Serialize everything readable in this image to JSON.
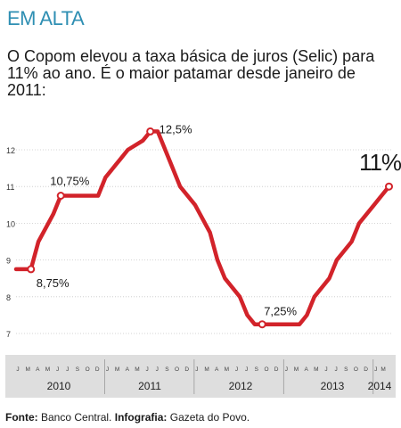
{
  "header": {
    "kicker": "EM ALTA",
    "subtitle": "O Copom elevou a taxa básica de juros (Selic) para 11% ao ano. É o maior patamar desde janeiro de 2011:"
  },
  "footer": {
    "source_label": "Fonte:",
    "source_value": "Banco Central.",
    "infographic_label": "Infografia:",
    "infographic_value": "Gazeta do Povo."
  },
  "colors": {
    "line": "#d2232a",
    "grid": "#c8c8c8",
    "axis_band": "#dedede",
    "kicker": "#2f8fb3"
  },
  "chart_data": {
    "type": "line",
    "title": "",
    "xlabel": "",
    "ylabel": "",
    "ylim": [
      7,
      12.5
    ],
    "yticks": [
      7,
      8,
      9,
      10,
      11,
      12
    ],
    "grid": true,
    "month_ticks": [
      "J",
      "M",
      "A",
      "M",
      "J",
      "J",
      "S",
      "O",
      "D"
    ],
    "years": [
      {
        "label": "2010",
        "months": [
          "J",
          "M",
          "A",
          "M",
          "J",
          "J",
          "S",
          "O",
          "D"
        ]
      },
      {
        "label": "2011",
        "months": [
          "J",
          "M",
          "A",
          "M",
          "J",
          "J",
          "S",
          "O",
          "D"
        ]
      },
      {
        "label": "2012",
        "months": [
          "J",
          "M",
          "A",
          "M",
          "J",
          "J",
          "S",
          "O",
          "D"
        ]
      },
      {
        "label": "2013",
        "months": [
          "J",
          "M",
          "A",
          "M",
          "J",
          "J",
          "S",
          "O",
          "D"
        ]
      },
      {
        "label": "2014",
        "months": [
          "J",
          "M"
        ]
      }
    ],
    "series": [
      {
        "points": [
          {
            "x": "2010-01",
            "y": 8.75
          },
          {
            "x": "2010-03",
            "y": 8.75
          },
          {
            "x": "2010-04",
            "y": 9.5
          },
          {
            "x": "2010-06",
            "y": 10.25
          },
          {
            "x": "2010-07",
            "y": 10.75
          },
          {
            "x": "2010-09",
            "y": 10.75
          },
          {
            "x": "2010-12",
            "y": 10.75
          },
          {
            "x": "2011-01",
            "y": 11.25
          },
          {
            "x": "2011-03",
            "y": 11.75
          },
          {
            "x": "2011-04",
            "y": 12.0
          },
          {
            "x": "2011-06",
            "y": 12.25
          },
          {
            "x": "2011-07",
            "y": 12.5
          },
          {
            "x": "2011-08",
            "y": 12.5
          },
          {
            "x": "2011-10",
            "y": 11.5
          },
          {
            "x": "2011-11",
            "y": 11.0
          },
          {
            "x": "2012-01",
            "y": 10.5
          },
          {
            "x": "2012-03",
            "y": 9.75
          },
          {
            "x": "2012-04",
            "y": 9.0
          },
          {
            "x": "2012-05",
            "y": 8.5
          },
          {
            "x": "2012-07",
            "y": 8.0
          },
          {
            "x": "2012-08",
            "y": 7.5
          },
          {
            "x": "2012-09",
            "y": 7.25
          },
          {
            "x": "2012-10",
            "y": 7.25
          },
          {
            "x": "2013-03",
            "y": 7.25
          },
          {
            "x": "2013-04",
            "y": 7.5
          },
          {
            "x": "2013-05",
            "y": 8.0
          },
          {
            "x": "2013-07",
            "y": 8.5
          },
          {
            "x": "2013-08",
            "y": 9.0
          },
          {
            "x": "2013-10",
            "y": 9.5
          },
          {
            "x": "2013-11",
            "y": 10.0
          },
          {
            "x": "2014-01",
            "y": 10.5
          },
          {
            "x": "2014-02",
            "y": 10.75
          },
          {
            "x": "2014-03",
            "y": 11.0
          }
        ]
      }
    ],
    "annotations": [
      {
        "x": "2010-03",
        "y": 8.75,
        "label": "8,75%",
        "emphasis": false
      },
      {
        "x": "2010-07",
        "y": 10.75,
        "label": "10,75%",
        "emphasis": false
      },
      {
        "x": "2011-07",
        "y": 12.5,
        "label": "12,5%",
        "emphasis": false
      },
      {
        "x": "2012-10",
        "y": 7.25,
        "label": "7,25%",
        "emphasis": false
      },
      {
        "x": "2014-03",
        "y": 11.0,
        "label": "11%",
        "emphasis": true
      }
    ]
  }
}
